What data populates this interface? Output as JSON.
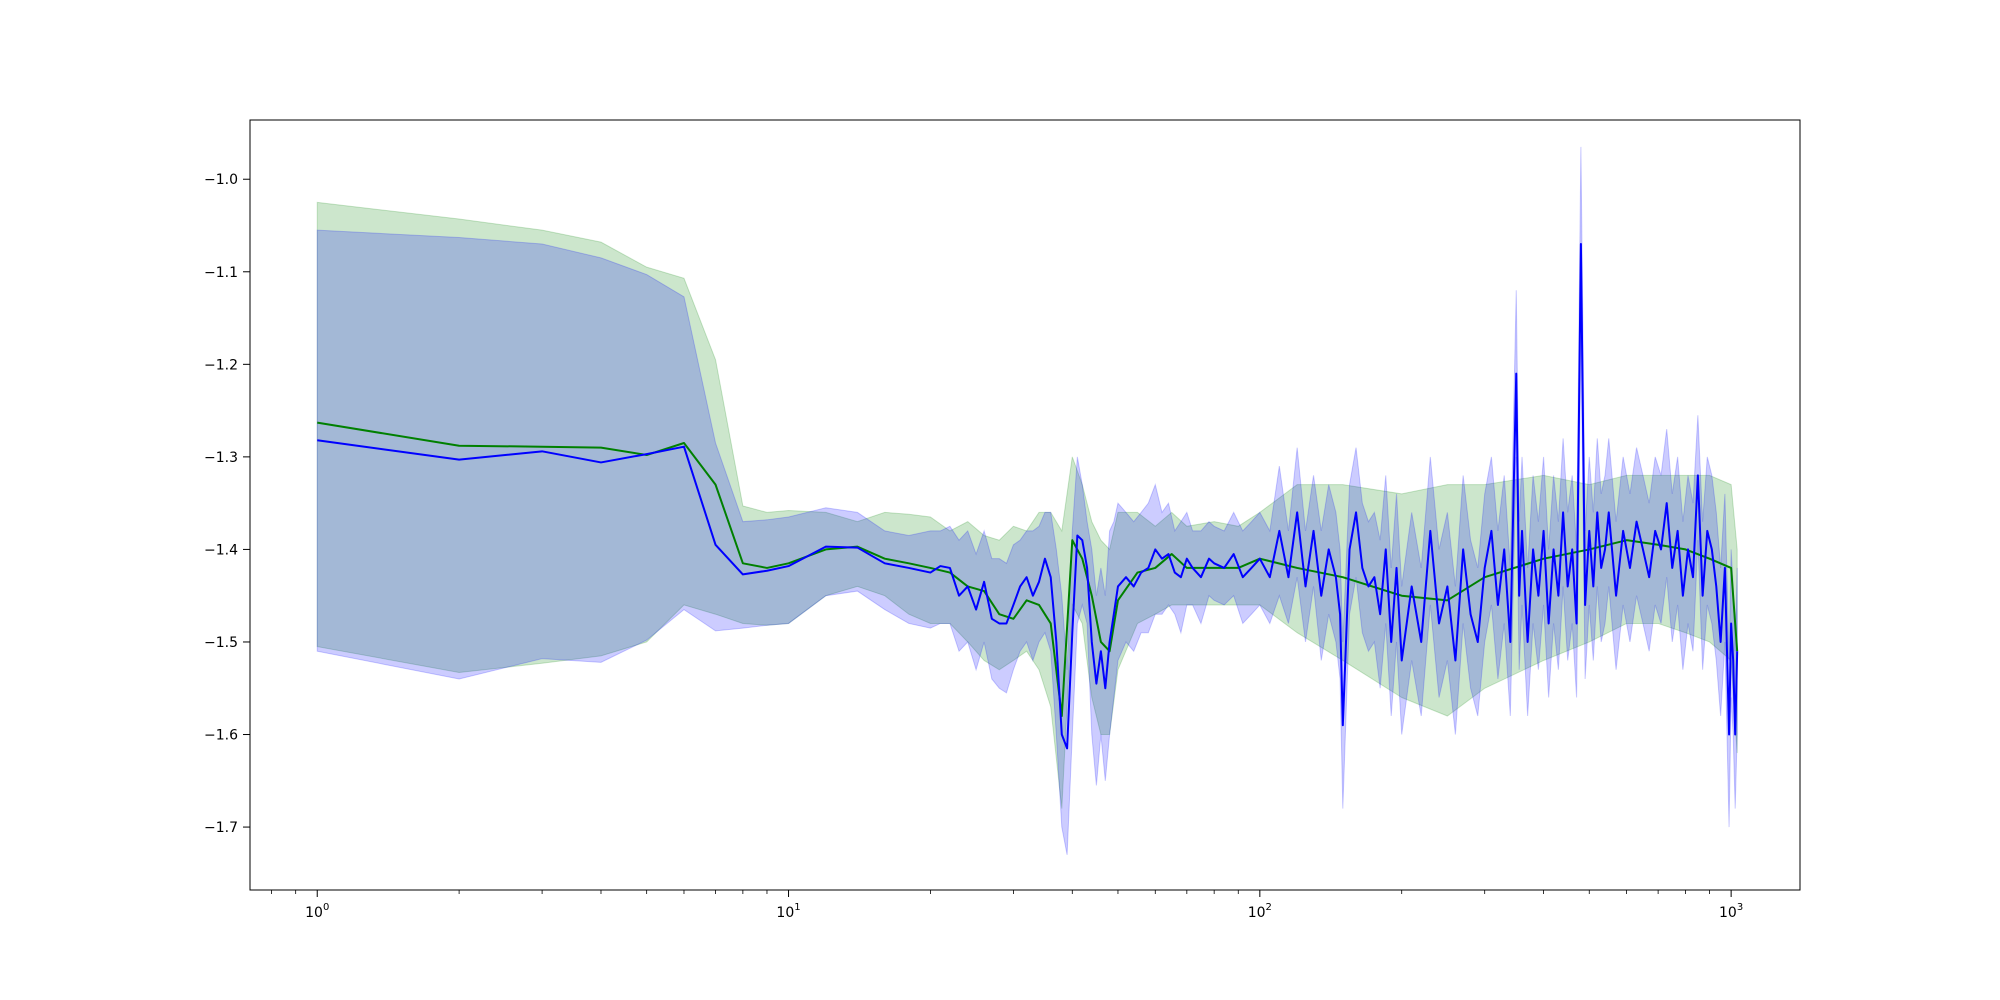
{
  "chart_data": {
    "type": "line",
    "title": "",
    "xlabel": "",
    "ylabel": "",
    "xscale": "log",
    "xlim": [
      0.72,
      1400
    ],
    "ylim": [
      -1.768,
      -0.936
    ],
    "grid": false,
    "colors": {
      "green": "#008000",
      "blue": "#0000ff",
      "green_band": "#008000",
      "blue_band": "#0000ff"
    },
    "xticks": [
      {
        "value": 1,
        "base": "10",
        "exp": "0"
      },
      {
        "value": 10,
        "base": "10",
        "exp": "1"
      },
      {
        "value": 100,
        "base": "10",
        "exp": "2"
      },
      {
        "value": 1000,
        "base": "10",
        "exp": "3"
      }
    ],
    "yticks": [
      {
        "value": -1.0,
        "label": "−1.0"
      },
      {
        "value": -1.1,
        "label": "−1.1"
      },
      {
        "value": -1.2,
        "label": "−1.2"
      },
      {
        "value": -1.3,
        "label": "−1.3"
      },
      {
        "value": -1.4,
        "label": "−1.4"
      },
      {
        "value": -1.5,
        "label": "−1.5"
      },
      {
        "value": -1.6,
        "label": "−1.6"
      },
      {
        "value": -1.7,
        "label": "−1.7"
      }
    ],
    "series": [
      {
        "color": "green",
        "x": [
          1,
          2,
          3,
          4,
          5,
          6,
          7,
          8,
          9,
          10,
          12,
          14,
          16,
          18,
          20,
          22,
          24,
          26,
          28,
          30,
          32,
          34,
          36,
          38,
          40,
          42,
          44,
          46,
          48,
          50,
          55,
          60,
          65,
          70,
          80,
          90,
          100,
          120,
          150,
          200,
          250,
          300,
          400,
          500,
          600,
          700,
          800,
          900,
          1000,
          1030
        ],
        "y": [
          -1.263,
          -1.288,
          -1.289,
          -1.29,
          -1.298,
          -1.285,
          -1.33,
          -1.415,
          -1.42,
          -1.415,
          -1.4,
          -1.397,
          -1.41,
          -1.415,
          -1.42,
          -1.425,
          -1.44,
          -1.445,
          -1.47,
          -1.475,
          -1.455,
          -1.46,
          -1.48,
          -1.58,
          -1.39,
          -1.41,
          -1.45,
          -1.5,
          -1.51,
          -1.455,
          -1.425,
          -1.42,
          -1.405,
          -1.42,
          -1.42,
          -1.42,
          -1.41,
          -1.42,
          -1.43,
          -1.45,
          -1.455,
          -1.43,
          -1.41,
          -1.4,
          -1.39,
          -1.395,
          -1.4,
          -1.41,
          -1.42,
          -1.51
        ],
        "upper": [
          -1.025,
          -1.043,
          -1.055,
          -1.068,
          -1.095,
          -1.107,
          -1.195,
          -1.353,
          -1.36,
          -1.358,
          -1.36,
          -1.37,
          -1.36,
          -1.362,
          -1.365,
          -1.38,
          -1.37,
          -1.385,
          -1.39,
          -1.375,
          -1.38,
          -1.36,
          -1.36,
          -1.38,
          -1.3,
          -1.33,
          -1.37,
          -1.39,
          -1.4,
          -1.36,
          -1.36,
          -1.375,
          -1.36,
          -1.375,
          -1.37,
          -1.375,
          -1.36,
          -1.33,
          -1.33,
          -1.34,
          -1.33,
          -1.33,
          -1.32,
          -1.33,
          -1.32,
          -1.32,
          -1.32,
          -1.32,
          -1.33,
          -1.4
        ],
        "lower": [
          -1.505,
          -1.533,
          -1.523,
          -1.515,
          -1.5,
          -1.46,
          -1.47,
          -1.48,
          -1.482,
          -1.48,
          -1.45,
          -1.44,
          -1.45,
          -1.47,
          -1.48,
          -1.48,
          -1.5,
          -1.52,
          -1.53,
          -1.52,
          -1.51,
          -1.53,
          -1.57,
          -1.68,
          -1.46,
          -1.48,
          -1.56,
          -1.6,
          -1.6,
          -1.53,
          -1.48,
          -1.47,
          -1.46,
          -1.46,
          -1.46,
          -1.46,
          -1.46,
          -1.49,
          -1.52,
          -1.56,
          -1.58,
          -1.55,
          -1.52,
          -1.5,
          -1.48,
          -1.48,
          -1.49,
          -1.5,
          -1.52,
          -1.62
        ]
      },
      {
        "color": "blue",
        "x": [
          1,
          2,
          3,
          4,
          5,
          6,
          7,
          8,
          9,
          10,
          12,
          14,
          16,
          18,
          20,
          21,
          22,
          23,
          24,
          25,
          26,
          27,
          28,
          29,
          30,
          31,
          32,
          33,
          34,
          35,
          36,
          37,
          38,
          39,
          40,
          41,
          42,
          43,
          44,
          45,
          46,
          47,
          48,
          49,
          50,
          52,
          54,
          56,
          58,
          60,
          62,
          64,
          66,
          68,
          70,
          72,
          75,
          78,
          80,
          84,
          88,
          92,
          96,
          100,
          105,
          110,
          115,
          120,
          125,
          130,
          135,
          140,
          145,
          148,
          150,
          155,
          160,
          165,
          170,
          175,
          180,
          185,
          190,
          195,
          200,
          210,
          220,
          230,
          240,
          250,
          260,
          270,
          280,
          290,
          300,
          310,
          320,
          330,
          340,
          350,
          355,
          360,
          370,
          380,
          390,
          400,
          410,
          420,
          430,
          440,
          450,
          460,
          470,
          480,
          490,
          500,
          510,
          520,
          530,
          540,
          550,
          570,
          590,
          610,
          630,
          650,
          670,
          690,
          710,
          730,
          750,
          770,
          790,
          810,
          830,
          850,
          870,
          890,
          910,
          930,
          950,
          970,
          990,
          1000,
          1010,
          1020,
          1030
        ],
        "y": [
          -1.282,
          -1.303,
          -1.294,
          -1.306,
          -1.297,
          -1.289,
          -1.395,
          -1.427,
          -1.423,
          -1.418,
          -1.397,
          -1.398,
          -1.415,
          -1.42,
          -1.425,
          -1.418,
          -1.42,
          -1.45,
          -1.44,
          -1.465,
          -1.435,
          -1.475,
          -1.48,
          -1.48,
          -1.46,
          -1.44,
          -1.43,
          -1.45,
          -1.435,
          -1.41,
          -1.43,
          -1.5,
          -1.6,
          -1.615,
          -1.49,
          -1.385,
          -1.39,
          -1.42,
          -1.5,
          -1.545,
          -1.51,
          -1.55,
          -1.5,
          -1.47,
          -1.44,
          -1.43,
          -1.44,
          -1.425,
          -1.42,
          -1.4,
          -1.41,
          -1.405,
          -1.425,
          -1.43,
          -1.41,
          -1.42,
          -1.43,
          -1.41,
          -1.415,
          -1.42,
          -1.405,
          -1.43,
          -1.42,
          -1.41,
          -1.43,
          -1.38,
          -1.43,
          -1.36,
          -1.44,
          -1.38,
          -1.45,
          -1.4,
          -1.43,
          -1.47,
          -1.59,
          -1.4,
          -1.36,
          -1.42,
          -1.44,
          -1.43,
          -1.47,
          -1.4,
          -1.5,
          -1.42,
          -1.52,
          -1.44,
          -1.5,
          -1.38,
          -1.48,
          -1.44,
          -1.52,
          -1.4,
          -1.47,
          -1.5,
          -1.42,
          -1.38,
          -1.46,
          -1.4,
          -1.5,
          -1.21,
          -1.45,
          -1.38,
          -1.5,
          -1.4,
          -1.45,
          -1.38,
          -1.48,
          -1.4,
          -1.45,
          -1.36,
          -1.44,
          -1.4,
          -1.48,
          -1.07,
          -1.46,
          -1.38,
          -1.44,
          -1.36,
          -1.42,
          -1.4,
          -1.36,
          -1.45,
          -1.38,
          -1.42,
          -1.37,
          -1.4,
          -1.43,
          -1.38,
          -1.4,
          -1.35,
          -1.42,
          -1.38,
          -1.45,
          -1.4,
          -1.43,
          -1.32,
          -1.45,
          -1.38,
          -1.4,
          -1.44,
          -1.5,
          -1.42,
          -1.6,
          -1.48,
          -1.52,
          -1.6,
          -1.51
        ],
        "upper": [
          -1.055,
          -1.063,
          -1.07,
          -1.085,
          -1.103,
          -1.127,
          -1.285,
          -1.37,
          -1.368,
          -1.365,
          -1.355,
          -1.36,
          -1.38,
          -1.385,
          -1.38,
          -1.38,
          -1.375,
          -1.39,
          -1.38,
          -1.405,
          -1.38,
          -1.41,
          -1.41,
          -1.415,
          -1.395,
          -1.39,
          -1.38,
          -1.38,
          -1.375,
          -1.36,
          -1.36,
          -1.4,
          -1.45,
          -1.53,
          -1.38,
          -1.3,
          -1.33,
          -1.37,
          -1.4,
          -1.45,
          -1.42,
          -1.45,
          -1.38,
          -1.37,
          -1.35,
          -1.36,
          -1.37,
          -1.36,
          -1.35,
          -1.33,
          -1.36,
          -1.35,
          -1.38,
          -1.37,
          -1.36,
          -1.38,
          -1.38,
          -1.37,
          -1.375,
          -1.38,
          -1.36,
          -1.38,
          -1.37,
          -1.36,
          -1.38,
          -1.31,
          -1.38,
          -1.29,
          -1.38,
          -1.32,
          -1.38,
          -1.33,
          -1.36,
          -1.4,
          -1.5,
          -1.33,
          -1.29,
          -1.35,
          -1.37,
          -1.36,
          -1.39,
          -1.32,
          -1.42,
          -1.34,
          -1.44,
          -1.36,
          -1.42,
          -1.3,
          -1.4,
          -1.36,
          -1.44,
          -1.32,
          -1.39,
          -1.42,
          -1.34,
          -1.3,
          -1.38,
          -1.32,
          -1.42,
          -1.12,
          -1.37,
          -1.3,
          -1.42,
          -1.32,
          -1.37,
          -1.3,
          -1.4,
          -1.32,
          -1.37,
          -1.28,
          -1.36,
          -1.32,
          -1.4,
          -0.965,
          -1.38,
          -1.3,
          -1.36,
          -1.28,
          -1.34,
          -1.32,
          -1.28,
          -1.37,
          -1.3,
          -1.34,
          -1.29,
          -1.32,
          -1.35,
          -1.3,
          -1.32,
          -1.27,
          -1.34,
          -1.3,
          -1.37,
          -1.32,
          -1.35,
          -1.255,
          -1.37,
          -1.3,
          -1.32,
          -1.36,
          -1.42,
          -1.34,
          -1.52,
          -1.4,
          -1.44,
          -1.51,
          -1.42
        ],
        "lower": [
          -1.51,
          -1.54,
          -1.518,
          -1.522,
          -1.498,
          -1.465,
          -1.488,
          -1.485,
          -1.482,
          -1.48,
          -1.45,
          -1.445,
          -1.465,
          -1.48,
          -1.485,
          -1.48,
          -1.48,
          -1.51,
          -1.5,
          -1.53,
          -1.5,
          -1.54,
          -1.55,
          -1.555,
          -1.53,
          -1.51,
          -1.5,
          -1.52,
          -1.5,
          -1.49,
          -1.51,
          -1.6,
          -1.7,
          -1.73,
          -1.6,
          -1.48,
          -1.46,
          -1.48,
          -1.6,
          -1.655,
          -1.6,
          -1.65,
          -1.6,
          -1.56,
          -1.52,
          -1.5,
          -1.51,
          -1.49,
          -1.49,
          -1.47,
          -1.47,
          -1.46,
          -1.47,
          -1.49,
          -1.46,
          -1.46,
          -1.48,
          -1.45,
          -1.455,
          -1.46,
          -1.45,
          -1.48,
          -1.47,
          -1.46,
          -1.48,
          -1.45,
          -1.48,
          -1.43,
          -1.5,
          -1.44,
          -1.52,
          -1.47,
          -1.5,
          -1.54,
          -1.68,
          -1.47,
          -1.43,
          -1.49,
          -1.51,
          -1.5,
          -1.55,
          -1.48,
          -1.58,
          -1.5,
          -1.6,
          -1.52,
          -1.58,
          -1.46,
          -1.56,
          -1.52,
          -1.6,
          -1.48,
          -1.55,
          -1.58,
          -1.5,
          -1.46,
          -1.54,
          -1.48,
          -1.58,
          -1.3,
          -1.53,
          -1.46,
          -1.58,
          -1.48,
          -1.53,
          -1.46,
          -1.56,
          -1.48,
          -1.53,
          -1.44,
          -1.52,
          -1.48,
          -1.56,
          -1.17,
          -1.54,
          -1.46,
          -1.52,
          -1.44,
          -1.5,
          -1.48,
          -1.44,
          -1.53,
          -1.46,
          -1.5,
          -1.45,
          -1.48,
          -1.51,
          -1.46,
          -1.48,
          -1.43,
          -1.5,
          -1.46,
          -1.53,
          -1.48,
          -1.51,
          -1.39,
          -1.53,
          -1.46,
          -1.48,
          -1.52,
          -1.58,
          -1.5,
          -1.7,
          -1.56,
          -1.6,
          -1.68,
          -1.6
        ]
      }
    ]
  }
}
